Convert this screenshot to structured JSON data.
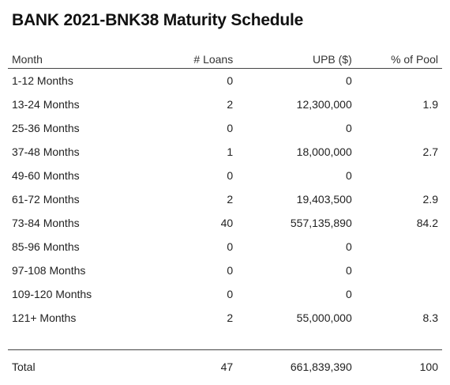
{
  "chart_data": {
    "type": "table",
    "title": "BANK 2021-BNK38 Maturity Schedule",
    "columns": [
      "Month",
      "# Loans",
      "UPB ($)",
      "% of Pool"
    ],
    "rows": [
      {
        "month": "1-12 Months",
        "loans": "0",
        "upb": "0",
        "pct": ""
      },
      {
        "month": "13-24 Months",
        "loans": "2",
        "upb": "12,300,000",
        "pct": "1.9"
      },
      {
        "month": "25-36 Months",
        "loans": "0",
        "upb": "0",
        "pct": ""
      },
      {
        "month": "37-48 Months",
        "loans": "1",
        "upb": "18,000,000",
        "pct": "2.7"
      },
      {
        "month": "49-60 Months",
        "loans": "0",
        "upb": "0",
        "pct": ""
      },
      {
        "month": "61-72 Months",
        "loans": "2",
        "upb": "19,403,500",
        "pct": "2.9"
      },
      {
        "month": "73-84 Months",
        "loans": "40",
        "upb": "557,135,890",
        "pct": "84.2"
      },
      {
        "month": "85-96 Months",
        "loans": "0",
        "upb": "0",
        "pct": ""
      },
      {
        "month": "97-108 Months",
        "loans": "0",
        "upb": "0",
        "pct": ""
      },
      {
        "month": "109-120 Months",
        "loans": "0",
        "upb": "0",
        "pct": ""
      },
      {
        "month": "121+ Months",
        "loans": "2",
        "upb": "55,000,000",
        "pct": "8.3"
      }
    ],
    "total": {
      "month": "Total",
      "loans": "47",
      "upb": "661,839,390",
      "pct": "100"
    }
  }
}
